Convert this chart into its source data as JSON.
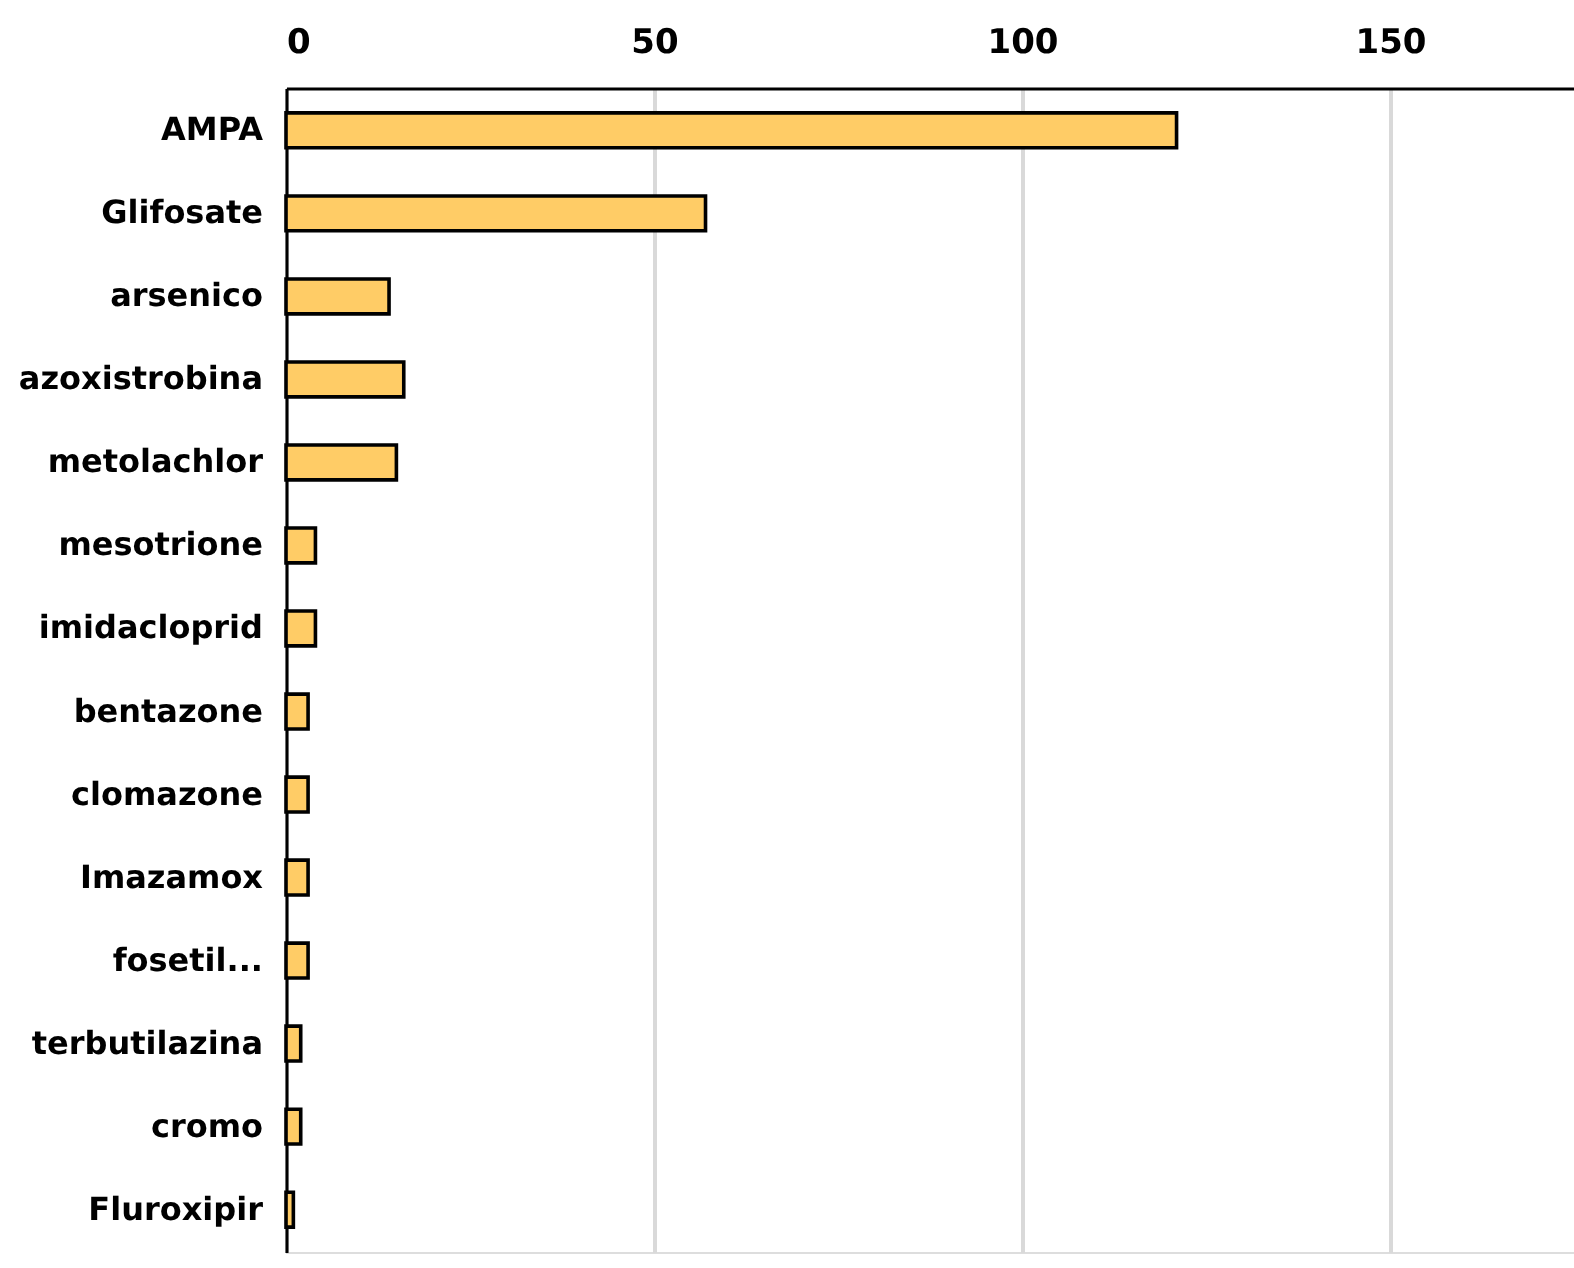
{
  "chart_data": {
    "type": "bar",
    "orientation": "horizontal",
    "categories": [
      "AMPA",
      "Glifosate",
      "arsenico",
      "azoxistrobina",
      "metolachlor",
      "mesotrione",
      "imidacloprid",
      "bentazone",
      "clomazone",
      "Imazamox",
      "fosetil...",
      "terbutilazina",
      "cromo",
      "Fluroxipir"
    ],
    "values": [
      121,
      57,
      14,
      16,
      15,
      4,
      4,
      3,
      3,
      3,
      3,
      2,
      2,
      1
    ],
    "color": "#ffcc66",
    "xlim": [
      0,
      175
    ],
    "xticks": [
      0,
      50,
      100,
      150
    ],
    "grid": "x"
  }
}
